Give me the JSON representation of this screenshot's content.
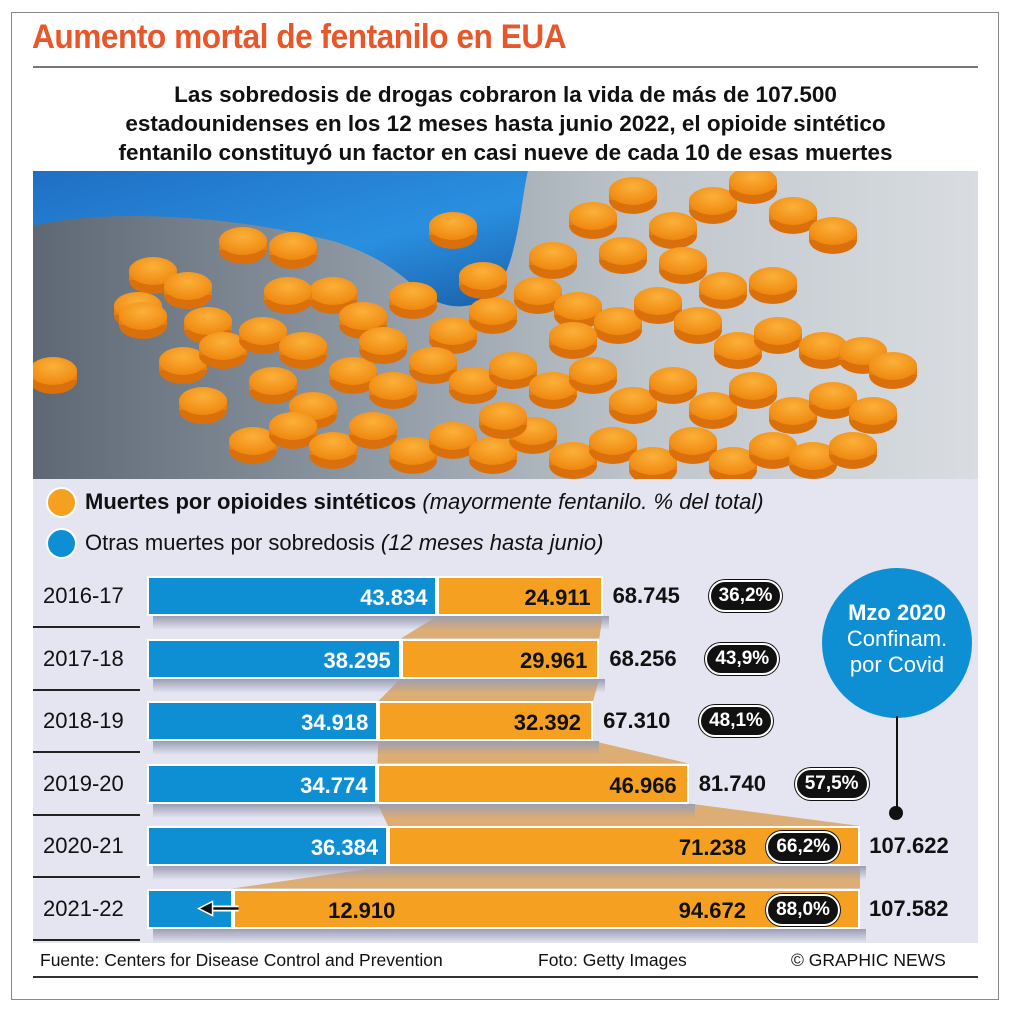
{
  "header": {
    "title": "Aumento mortal de fentanilo en EUA",
    "subtitle_lines": [
      "Las sobredosis de drogas cobraron la vida de más de 107.500",
      "estadounidenses en los 12 meses hasta junio 2022, el opioide sintético",
      "fentanilo constituyó un factor en casi nueve de cada 10 de esas muertes"
    ]
  },
  "photo": {
    "description": "Blue-gloved hand picking up orange fentanyl pills on a grey surface"
  },
  "legend": {
    "orange_bold": "Muertes por opioides sintéticos",
    "orange_italic": "(mayormente fentanilo. % del total)",
    "blue_regular": "Otras muertes por sobredosis",
    "blue_italic": "(12 meses hasta junio)"
  },
  "callout": {
    "line1": "Mzo 2020",
    "line2": "Confinam.",
    "line3": "por Covid"
  },
  "footer": {
    "source": "Fuente: Centers for Disease Control and Prevention",
    "photo_credit": "Foto: Getty Images",
    "copyright": "© GRAPHIC NEWS"
  },
  "colors": {
    "title": "#e8572a",
    "blue": "#0f8fd3",
    "orange": "#f6a021",
    "panel": "#e4e5f1"
  },
  "chart_data": {
    "type": "bar",
    "orientation": "horizontal",
    "stacked": true,
    "title": "Aumento mortal de fentanilo en EUA",
    "categories": [
      "2016-17",
      "2017-18",
      "2018-19",
      "2019-20",
      "2020-21",
      "2021-22"
    ],
    "series": [
      {
        "name": "Otras muertes por sobredosis",
        "color": "#0f8fd3",
        "values": [
          43834,
          38295,
          34918,
          34774,
          36384,
          12910
        ],
        "labels": [
          "43.834",
          "38.295",
          "34.918",
          "34.774",
          "36.384",
          "12.910"
        ]
      },
      {
        "name": "Muertes por opioides sintéticos",
        "color": "#f6a021",
        "values": [
          24911,
          29961,
          32392,
          46966,
          71238,
          94672
        ],
        "labels": [
          "24.911",
          "29.961",
          "32.392",
          "46.966",
          "71.238",
          "94.672"
        ]
      }
    ],
    "totals": [
      68745,
      68256,
      67310,
      81740,
      107622,
      107582
    ],
    "total_labels": [
      "68.745",
      "68.256",
      "67.310",
      "81.740",
      "107.622",
      "107.582"
    ],
    "percent_labels": [
      "36,2%",
      "43,9%",
      "48,1%",
      "57,5%",
      "66,2%",
      "88,0%"
    ],
    "percent_values": [
      36.2,
      43.9,
      48.1,
      57.5,
      66.2,
      88.0
    ],
    "annotation": "Mzo 2020 Confinam. por Covid (between 2019-20 and 2020-21)",
    "xlim": [
      0,
      110000
    ],
    "legend_position": "top-left",
    "grid": false
  }
}
